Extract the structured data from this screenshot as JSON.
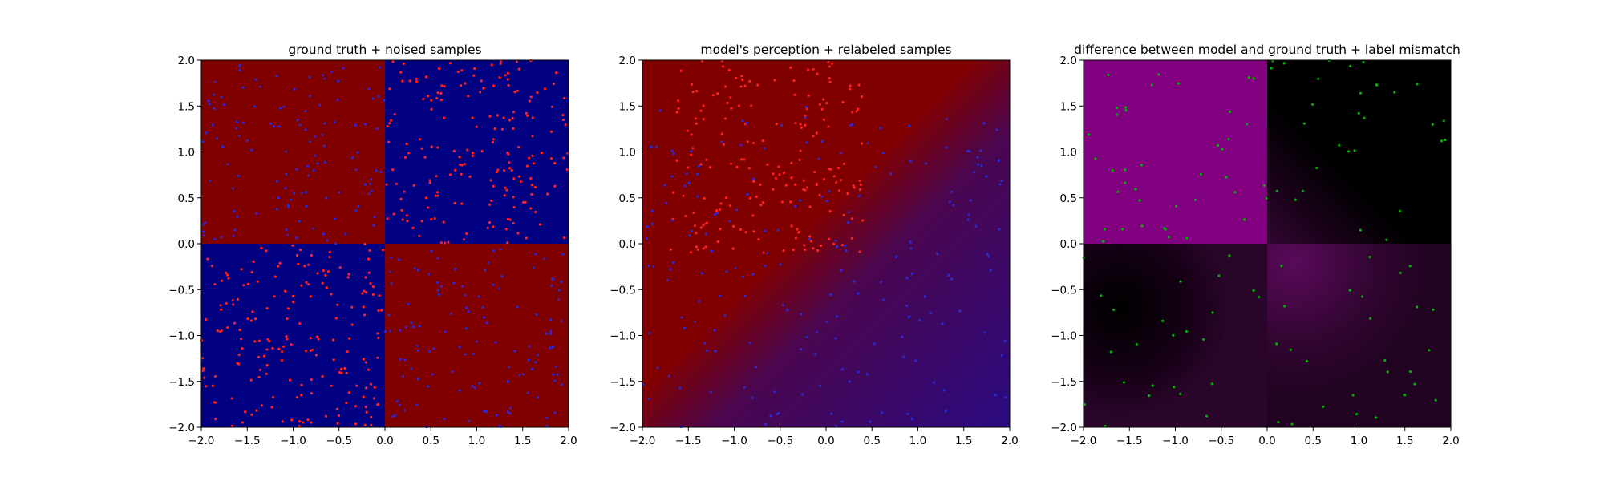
{
  "chart_data": [
    {
      "type": "heatmap",
      "title": "ground truth + noised samples",
      "xlim": [
        -2.0,
        2.0
      ],
      "ylim": [
        -2.0,
        2.0
      ],
      "xticks": [
        "−2.0",
        "−1.5",
        "−1.0",
        "−0.5",
        "0.0",
        "0.5",
        "1.0",
        "1.5",
        "2.0"
      ],
      "yticks": [
        "−2.0",
        "−1.5",
        "−1.0",
        "−0.5",
        "0.0",
        "0.5",
        "1.0",
        "1.5",
        "2.0"
      ],
      "xtick_values": [
        -2.0,
        -1.5,
        -1.0,
        -0.5,
        0.0,
        0.5,
        1.0,
        1.5,
        2.0
      ],
      "ytick_values": [
        -2.0,
        -1.5,
        -1.0,
        -0.5,
        0.0,
        0.5,
        1.0,
        1.5,
        2.0
      ],
      "background": {
        "kind": "xor-quadrants",
        "regions": [
          {
            "x": [
              -2,
              0
            ],
            "y": [
              0,
              2
            ],
            "color": "#800000"
          },
          {
            "x": [
              0,
              2
            ],
            "y": [
              0,
              2
            ],
            "color": "#000080"
          },
          {
            "x": [
              -2,
              0
            ],
            "y": [
              -2,
              0
            ],
            "color": "#000080"
          },
          {
            "x": [
              0,
              2
            ],
            "y": [
              -2,
              0
            ],
            "color": "#800000"
          }
        ]
      },
      "samples": [
        {
          "class": "red",
          "color": "#ff2020",
          "region": {
            "x": [
              0,
              2
            ],
            "y": [
              0,
              2
            ]
          },
          "density": "high"
        },
        {
          "class": "red",
          "color": "#ff2020",
          "region": {
            "x": [
              -2,
              0
            ],
            "y": [
              -2,
              0
            ]
          },
          "density": "high"
        },
        {
          "class": "blue",
          "color": "#2a2ad8",
          "region": {
            "x": [
              -2,
              0
            ],
            "y": [
              0,
              2
            ]
          },
          "density": "medium"
        },
        {
          "class": "blue",
          "color": "#2a2ad8",
          "region": {
            "x": [
              0,
              2
            ],
            "y": [
              -2,
              0
            ]
          },
          "density": "medium"
        }
      ],
      "grid": false
    },
    {
      "type": "heatmap",
      "title": "model's perception + relabeled samples",
      "xlim": [
        -2.0,
        2.0
      ],
      "ylim": [
        -2.0,
        2.0
      ],
      "xticks": [
        "−2.0",
        "−1.5",
        "−1.0",
        "−0.5",
        "0.0",
        "0.5",
        "1.0",
        "1.5",
        "2.0"
      ],
      "yticks": [
        "−2.0",
        "−1.5",
        "−1.0",
        "−0.5",
        "0.0",
        "0.5",
        "1.0",
        "1.5",
        "2.0"
      ],
      "xtick_values": [
        -2.0,
        -1.5,
        -1.0,
        -0.5,
        0.0,
        0.5,
        1.0,
        1.5,
        2.0
      ],
      "ytick_values": [
        -2.0,
        -1.5,
        -1.0,
        -0.5,
        0.0,
        0.5,
        1.0,
        1.5,
        2.0
      ],
      "background": {
        "kind": "gradient",
        "colors": {
          "red": "#800000",
          "blue": "#2a0a80"
        },
        "description_boundary": "diagonal from (-0.5, 0) to (2, 1.5)"
      },
      "samples": [
        {
          "class": "red",
          "color": "#ff2020",
          "region": {
            "x": [
              -1.7,
              0.4
            ],
            "y": [
              -0.1,
              2.0
            ]
          },
          "density": "high"
        },
        {
          "class": "blue",
          "color": "#2a2ad8",
          "region": {
            "x": [
              -2,
              2
            ],
            "y": [
              -2,
              1.5
            ]
          },
          "density": "high"
        }
      ],
      "grid": false
    },
    {
      "type": "heatmap",
      "title": "difference between model and ground truth + label mismatch",
      "xlim": [
        -2.0,
        2.0
      ],
      "ylim": [
        -2.0,
        2.0
      ],
      "xticks": [
        "−2.0",
        "−1.5",
        "−1.0",
        "−0.5",
        "0.0",
        "0.5",
        "1.0",
        "1.5",
        "2.0"
      ],
      "yticks": [
        "−2.0",
        "−1.5",
        "−1.0",
        "−0.5",
        "0.0",
        "0.5",
        "1.0",
        "1.5",
        "2.0"
      ],
      "xtick_values": [
        -2.0,
        -1.5,
        -1.0,
        -0.5,
        0.0,
        0.5,
        1.0,
        1.5,
        2.0
      ],
      "ytick_values": [
        -2.0,
        -1.5,
        -1.0,
        -0.5,
        0.0,
        0.5,
        1.0,
        1.5,
        2.0
      ],
      "background": {
        "kind": "difference",
        "regions": [
          {
            "x": [
              -2,
              0
            ],
            "y": [
              0,
              2
            ],
            "color": "#800080"
          },
          {
            "x": [
              0,
              2
            ],
            "y": [
              0,
              2
            ],
            "color": "#000000"
          },
          {
            "x": [
              -2,
              0
            ],
            "y": [
              -2,
              0
            ],
            "color": "#000000"
          },
          {
            "x": [
              0,
              2
            ],
            "y": [
              -2,
              0
            ],
            "color": "#3a0a3a"
          }
        ]
      },
      "samples": [
        {
          "class": "mismatch",
          "color": "#00b000",
          "region": {
            "x": [
              -2,
              2
            ],
            "y": [
              -2,
              2
            ]
          },
          "density": "medium"
        }
      ],
      "grid": false
    }
  ]
}
